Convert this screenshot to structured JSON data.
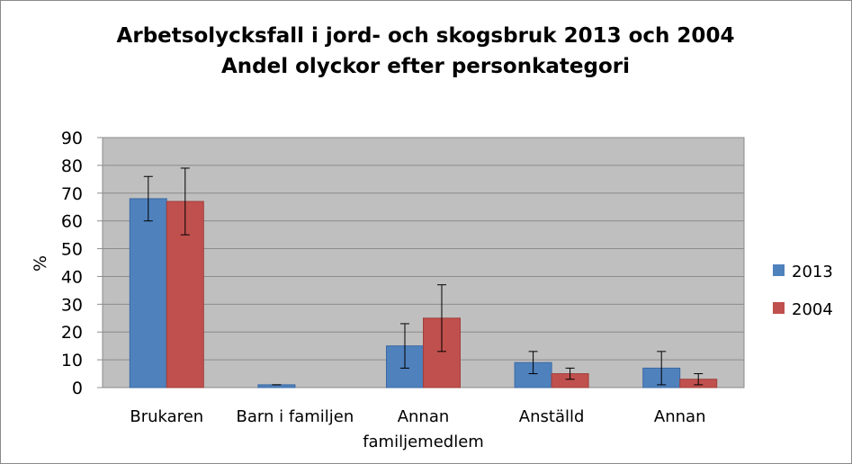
{
  "chart_data": {
    "type": "bar",
    "title": "Arbetsolycksfall i jord- och skogsbruk 2013 och 2004",
    "subtitle": "Andel olyckor efter personkategori",
    "xlabel": "",
    "ylabel": "%",
    "ylim": [
      0,
      90
    ],
    "yticks": [
      "0",
      "10",
      "20",
      "30",
      "40",
      "50",
      "60",
      "70",
      "80",
      "90"
    ],
    "grid": true,
    "legend": "right",
    "categories": [
      [
        "Brukaren"
      ],
      [
        "Barn i familjen"
      ],
      [
        "Annan",
        "familjemedlem"
      ],
      [
        "Anställd"
      ],
      [
        "Annan"
      ]
    ],
    "series": [
      {
        "name": "2013",
        "color": "#4f81bd",
        "values": [
          68,
          1,
          15,
          9,
          7
        ],
        "error_low": [
          60,
          1,
          7,
          5,
          1
        ],
        "error_high": [
          76,
          1,
          23,
          13,
          13
        ]
      },
      {
        "name": "2004",
        "color": "#c0504d",
        "values": [
          67,
          0,
          25,
          5,
          3
        ],
        "error_low": [
          55,
          0,
          13,
          3,
          1
        ],
        "error_high": [
          79,
          0,
          37,
          7,
          5
        ]
      }
    ],
    "plot_background": "#bfbfbf"
  }
}
